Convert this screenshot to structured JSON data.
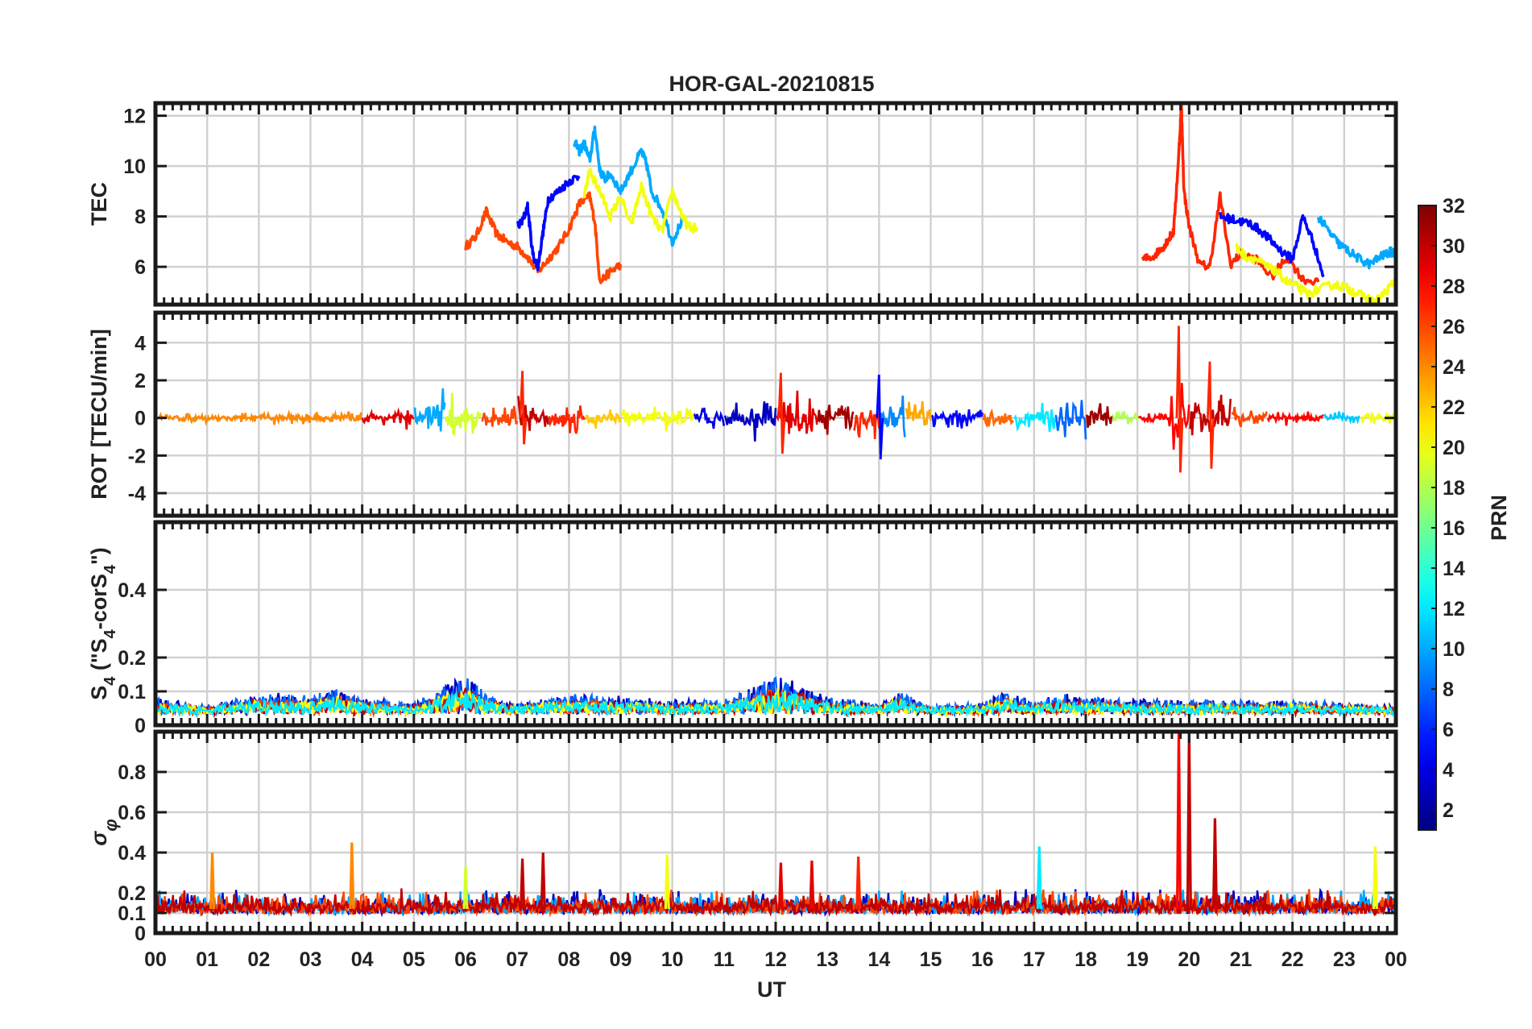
{
  "title": "HOR-GAL-20210815",
  "x_axis": {
    "label": "UT",
    "range_hours": [
      0,
      24
    ],
    "tick_labels": [
      "00",
      "01",
      "02",
      "03",
      "04",
      "05",
      "06",
      "07",
      "08",
      "09",
      "10",
      "11",
      "12",
      "13",
      "14",
      "15",
      "16",
      "17",
      "18",
      "19",
      "20",
      "21",
      "22",
      "23",
      "00"
    ]
  },
  "colorbar": {
    "label": "PRN",
    "range": [
      1,
      32
    ],
    "tick_labels": [
      "2",
      "4",
      "6",
      "8",
      "10",
      "12",
      "14",
      "16",
      "18",
      "20",
      "22",
      "24",
      "26",
      "28",
      "30",
      "32"
    ],
    "tick_values": [
      2,
      4,
      6,
      8,
      10,
      12,
      14,
      16,
      18,
      20,
      22,
      24,
      26,
      28,
      30,
      32
    ],
    "colormap": "jet"
  },
  "colors": {
    "frame": "#1a1a1a",
    "grid": "#d0d0d0",
    "text": "#222222"
  },
  "chart_data": [
    {
      "type": "line",
      "panel": "TEC",
      "ylabel": "TEC",
      "ylim": [
        4.5,
        12.5
      ],
      "y_tick_labels": [
        "6",
        "8",
        "10",
        "12"
      ],
      "y_tick_values": [
        6,
        8,
        10,
        12
      ],
      "grid": true,
      "series": [
        {
          "prn": 26,
          "x": [
            6.0,
            6.2,
            6.4,
            6.6,
            6.8,
            7.0,
            7.2,
            7.4,
            7.6,
            7.8,
            8.0,
            8.2,
            8.4,
            8.5,
            8.6,
            8.8,
            9.0
          ],
          "y": [
            6.8,
            7.2,
            8.2,
            7.3,
            7.0,
            6.8,
            6.4,
            5.8,
            6.3,
            6.8,
            7.5,
            8.5,
            8.8,
            7.8,
            5.4,
            5.8,
            6.1
          ]
        },
        {
          "prn": 5,
          "x": [
            7.0,
            7.1,
            7.2,
            7.3,
            7.4,
            7.5,
            7.6,
            7.8,
            8.0,
            8.2
          ],
          "y": [
            7.6,
            7.8,
            8.4,
            6.5,
            6.0,
            7.4,
            8.7,
            9.0,
            9.4,
            9.6
          ]
        },
        {
          "prn": 10,
          "x": [
            8.1,
            8.2,
            8.3,
            8.4,
            8.5,
            8.6,
            8.7,
            8.8,
            9.0,
            9.2,
            9.4,
            9.5,
            9.6,
            9.8,
            10.0,
            10.2
          ],
          "y": [
            11.0,
            10.6,
            10.9,
            10.2,
            11.5,
            9.8,
            9.5,
            9.7,
            9.0,
            9.8,
            10.6,
            10.1,
            9.0,
            8.3,
            7.0,
            7.9
          ]
        },
        {
          "prn": 20,
          "x": [
            8.3,
            8.4,
            8.5,
            8.6,
            8.8,
            9.0,
            9.2,
            9.4,
            9.6,
            9.8,
            10.0,
            10.2,
            10.3,
            10.5
          ],
          "y": [
            8.8,
            9.8,
            9.4,
            9.0,
            8.0,
            8.8,
            7.6,
            9.2,
            8.0,
            7.4,
            9.0,
            8.0,
            7.6,
            7.5
          ]
        },
        {
          "prn": 27,
          "x": [
            19.1,
            19.3,
            19.5,
            19.6,
            19.7,
            19.8,
            19.85,
            19.9,
            20.0,
            20.2,
            20.4,
            20.6,
            20.8,
            21.0,
            21.3,
            21.6,
            21.9,
            22.2,
            22.5
          ],
          "y": [
            6.3,
            6.4,
            6.8,
            7.1,
            7.4,
            10.5,
            12.4,
            9.0,
            7.6,
            6.1,
            6.0,
            8.8,
            6.1,
            6.5,
            6.3,
            5.6,
            6.4,
            5.5,
            5.4
          ]
        },
        {
          "prn": 5,
          "x": [
            20.6,
            20.8,
            21.0,
            21.2,
            21.4,
            21.6,
            21.8,
            22.0,
            22.2,
            22.4,
            22.6
          ],
          "y": [
            8.0,
            7.9,
            7.8,
            7.7,
            7.4,
            7.0,
            6.6,
            6.3,
            8.0,
            7.0,
            5.6
          ]
        },
        {
          "prn": 20,
          "x": [
            20.9,
            21.1,
            21.3,
            21.5,
            21.7,
            21.9,
            22.1,
            22.3,
            22.5,
            22.8,
            23.0,
            23.2,
            23.4,
            23.6,
            23.8,
            24.0
          ],
          "y": [
            6.8,
            6.4,
            6.3,
            6.0,
            5.8,
            5.4,
            5.2,
            4.9,
            5.1,
            5.3,
            5.2,
            5.0,
            4.8,
            4.6,
            5.0,
            5.5
          ]
        },
        {
          "prn": 10,
          "x": [
            22.5,
            22.7,
            22.9,
            23.1,
            23.3,
            23.5,
            23.7,
            23.9,
            24.0
          ],
          "y": [
            8.0,
            7.4,
            6.9,
            6.6,
            6.3,
            6.1,
            6.4,
            6.6,
            6.5
          ]
        }
      ]
    },
    {
      "type": "line",
      "panel": "ROT",
      "ylabel": "ROT [TECU/min]",
      "ylim": [
        -5.2,
        5.6
      ],
      "y_tick_labels": [
        "-4",
        "-2",
        "0",
        "2",
        "4"
      ],
      "y_tick_values": [
        -4,
        -2,
        0,
        2,
        4
      ],
      "grid": true,
      "envelope_hours": [
        0,
        1,
        2,
        3,
        4,
        5,
        5.5,
        6,
        6.5,
        7,
        7.5,
        8,
        9,
        10,
        11,
        12,
        12.5,
        13,
        13.5,
        14,
        14.5,
        15,
        16,
        17,
        18,
        18.5,
        19,
        19.5,
        19.8,
        20,
        20.5,
        21,
        22,
        23,
        24
      ],
      "envelope_amplitude": [
        0.3,
        0.3,
        0.4,
        0.4,
        0.5,
        0.8,
        1.8,
        1.5,
        0.5,
        1.6,
        0.7,
        1.0,
        0.8,
        0.9,
        0.7,
        1.7,
        2.0,
        1.6,
        1.2,
        2.0,
        1.8,
        0.8,
        0.6,
        0.9,
        1.4,
        0.6,
        0.3,
        0.4,
        4.0,
        1.2,
        2.3,
        0.6,
        0.5,
        0.4,
        0.6
      ],
      "peaks": [
        {
          "hour": 19.8,
          "max": 4.9,
          "min": -2.9
        },
        {
          "hour": 12.1,
          "max": 2.4,
          "min": -1.9
        },
        {
          "hour": 7.1,
          "max": 2.5,
          "min": -1.4
        },
        {
          "hour": 14.0,
          "max": 2.3,
          "min": -2.2
        },
        {
          "hour": 20.4,
          "max": 3.0,
          "min": -2.7
        }
      ]
    },
    {
      "type": "line",
      "panel": "S4",
      "ylabel": "S4 (\"S4-corS4\")",
      "ylim": [
        0,
        0.6
      ],
      "y_tick_labels": [
        "0",
        "0.1",
        "0.2",
        "0.4"
      ],
      "y_tick_values": [
        0,
        0.1,
        0.2,
        0.4
      ],
      "grid": true,
      "envelope_hours": [
        0,
        1,
        2,
        3,
        3.5,
        4,
        5,
        5.6,
        6,
        6.5,
        7,
        8,
        9,
        10,
        11,
        12,
        12.5,
        13,
        14,
        14.4,
        15,
        16,
        16.5,
        17,
        17.5,
        18,
        19,
        20,
        21,
        22,
        23,
        24
      ],
      "envelope_level": [
        0.08,
        0.05,
        0.09,
        0.09,
        0.11,
        0.08,
        0.06,
        0.12,
        0.15,
        0.08,
        0.06,
        0.09,
        0.08,
        0.07,
        0.07,
        0.15,
        0.12,
        0.08,
        0.06,
        0.1,
        0.05,
        0.06,
        0.1,
        0.06,
        0.09,
        0.08,
        0.07,
        0.07,
        0.07,
        0.07,
        0.06,
        0.05
      ]
    },
    {
      "type": "line",
      "panel": "sigma_phi",
      "ylabel": "σφ",
      "ylim": [
        0,
        1.0
      ],
      "y_tick_labels": [
        "0",
        "0.1",
        "0.2",
        "0.4",
        "0.6",
        "0.8"
      ],
      "y_tick_values": [
        0,
        0.1,
        0.2,
        0.4,
        0.6,
        0.8
      ],
      "grid": true,
      "spikes": [
        {
          "hour": 1.1,
          "value": 0.4
        },
        {
          "hour": 3.8,
          "value": 0.45
        },
        {
          "hour": 6.0,
          "value": 0.33
        },
        {
          "hour": 7.1,
          "value": 0.37
        },
        {
          "hour": 7.5,
          "value": 0.4
        },
        {
          "hour": 9.9,
          "value": 0.39
        },
        {
          "hour": 12.1,
          "value": 0.35
        },
        {
          "hour": 12.7,
          "value": 0.36
        },
        {
          "hour": 13.6,
          "value": 0.38
        },
        {
          "hour": 17.1,
          "value": 0.43
        },
        {
          "hour": 19.8,
          "value": 1.0
        },
        {
          "hour": 20.0,
          "value": 1.0
        },
        {
          "hour": 20.5,
          "value": 0.57
        },
        {
          "hour": 23.6,
          "value": 0.43
        }
      ],
      "baseline": 0.12
    }
  ]
}
